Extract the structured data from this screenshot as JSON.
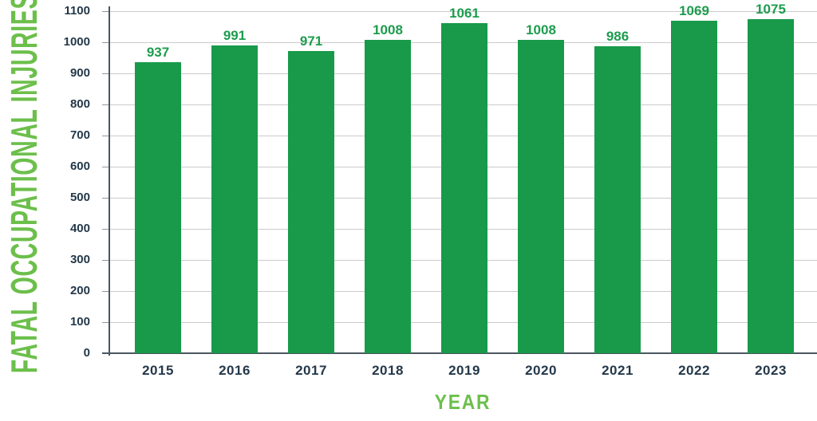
{
  "chart_data": {
    "type": "bar",
    "categories": [
      "2015",
      "2016",
      "2017",
      "2018",
      "2019",
      "2020",
      "2021",
      "2022",
      "2023"
    ],
    "values": [
      937,
      991,
      971,
      1008,
      1061,
      1008,
      986,
      1069,
      1075
    ],
    "xlabel": "YEAR",
    "ylabel": "FATAL OCCUPATIONAL INJURIES",
    "ylim": [
      0,
      1100
    ],
    "yticks": [
      0,
      100,
      200,
      300,
      400,
      500,
      600,
      700,
      800,
      900,
      1000,
      1100
    ],
    "grid": true,
    "legend": "none",
    "value_labels_shown": true
  },
  "colors": {
    "bar": "#189a4a",
    "value_label": "#1d9c4d",
    "axis_title": "#6cbf4b",
    "tick_text": "#24384a",
    "axis_line": "#4a5660",
    "gridline": "#cbcbcb",
    "tick_mark": "#8e979e",
    "background": "#ffffff"
  }
}
